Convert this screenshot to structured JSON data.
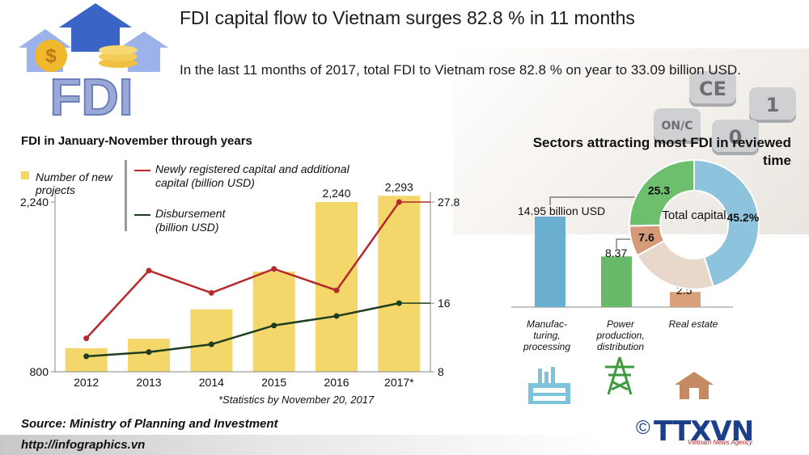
{
  "header": {
    "logo_text": "FDI",
    "title": "FDI capital flow to Vietnam surges 82.8 % in 11 months",
    "subtitle": "In the last 11 months of 2017, total FDI to Vietnam rose 82.8 % on year to 33.09 billion USD."
  },
  "chart_data": [
    {
      "type": "bar",
      "title": "FDI in January-November through years",
      "categories": [
        "2012",
        "2013",
        "2014",
        "2015",
        "2016",
        "2017*"
      ],
      "series": [
        {
          "name": "Number of new projects",
          "type": "bar",
          "axis": "left",
          "values": [
            1000,
            1080,
            1330,
            1650,
            2240,
            2293
          ],
          "labels": [
            "",
            "",
            "",
            "",
            "2,240",
            "2,293"
          ],
          "color": "#f3d76a"
        },
        {
          "name": "Newly registered capital and additional capital (billion USD)",
          "type": "line",
          "axis": "right",
          "values": [
            11.9,
            19.8,
            17.2,
            20.0,
            17.5,
            27.8
          ],
          "color": "#b52a2a"
        },
        {
          "name": "Disbursement (billion USD)",
          "type": "line",
          "axis": "right",
          "values": [
            9.8,
            10.3,
            11.2,
            13.4,
            14.5,
            16.0
          ],
          "color": "#1e3d1e"
        }
      ],
      "left_axis": {
        "min": 800,
        "max": 2240,
        "ticks": [
          "800",
          "2,240"
        ]
      },
      "right_axis": {
        "min": 8,
        "max": 27.8,
        "ticks": [
          "8",
          "16",
          "27.8"
        ]
      },
      "grid": false,
      "footnote": "*Statistics by November 20, 2017"
    },
    {
      "type": "bar",
      "title": "Sectors attracting most FDI in reviewed time",
      "categories": [
        "Manufac-turing, processing",
        "Power production, distribution",
        "Real estate"
      ],
      "values": [
        14.95,
        8.37,
        2.5
      ],
      "value_labels": [
        "14.95 billion USD",
        "8.37",
        "2.5"
      ],
      "colors": [
        "#6aaed0",
        "#6ab86a",
        "#d9a07a"
      ]
    },
    {
      "type": "pie",
      "center_label": "Total capital",
      "slices": [
        {
          "label": "45.2%",
          "value": 45.2,
          "color": "#8ec3dd"
        },
        {
          "label": "",
          "value": 21.9,
          "color": "#e8d8cc"
        },
        {
          "label": "7.6",
          "value": 7.6,
          "color": "#d59a78"
        },
        {
          "label": "25.3",
          "value": 25.3,
          "color": "#6dbf6d"
        }
      ]
    }
  ],
  "icons": [
    "factory-icon",
    "power-tower-icon",
    "house-icon",
    "calculator-keys-decoration"
  ],
  "calculator_keys": [
    "CE",
    "1",
    "ON/C",
    "0"
  ],
  "footer": {
    "source": "Source: Ministry of Planning and Investment",
    "url": "http://infographics.vn",
    "copyright": "©",
    "agency": "TTXVN",
    "agency_sub": "Vietnam News Agency"
  }
}
